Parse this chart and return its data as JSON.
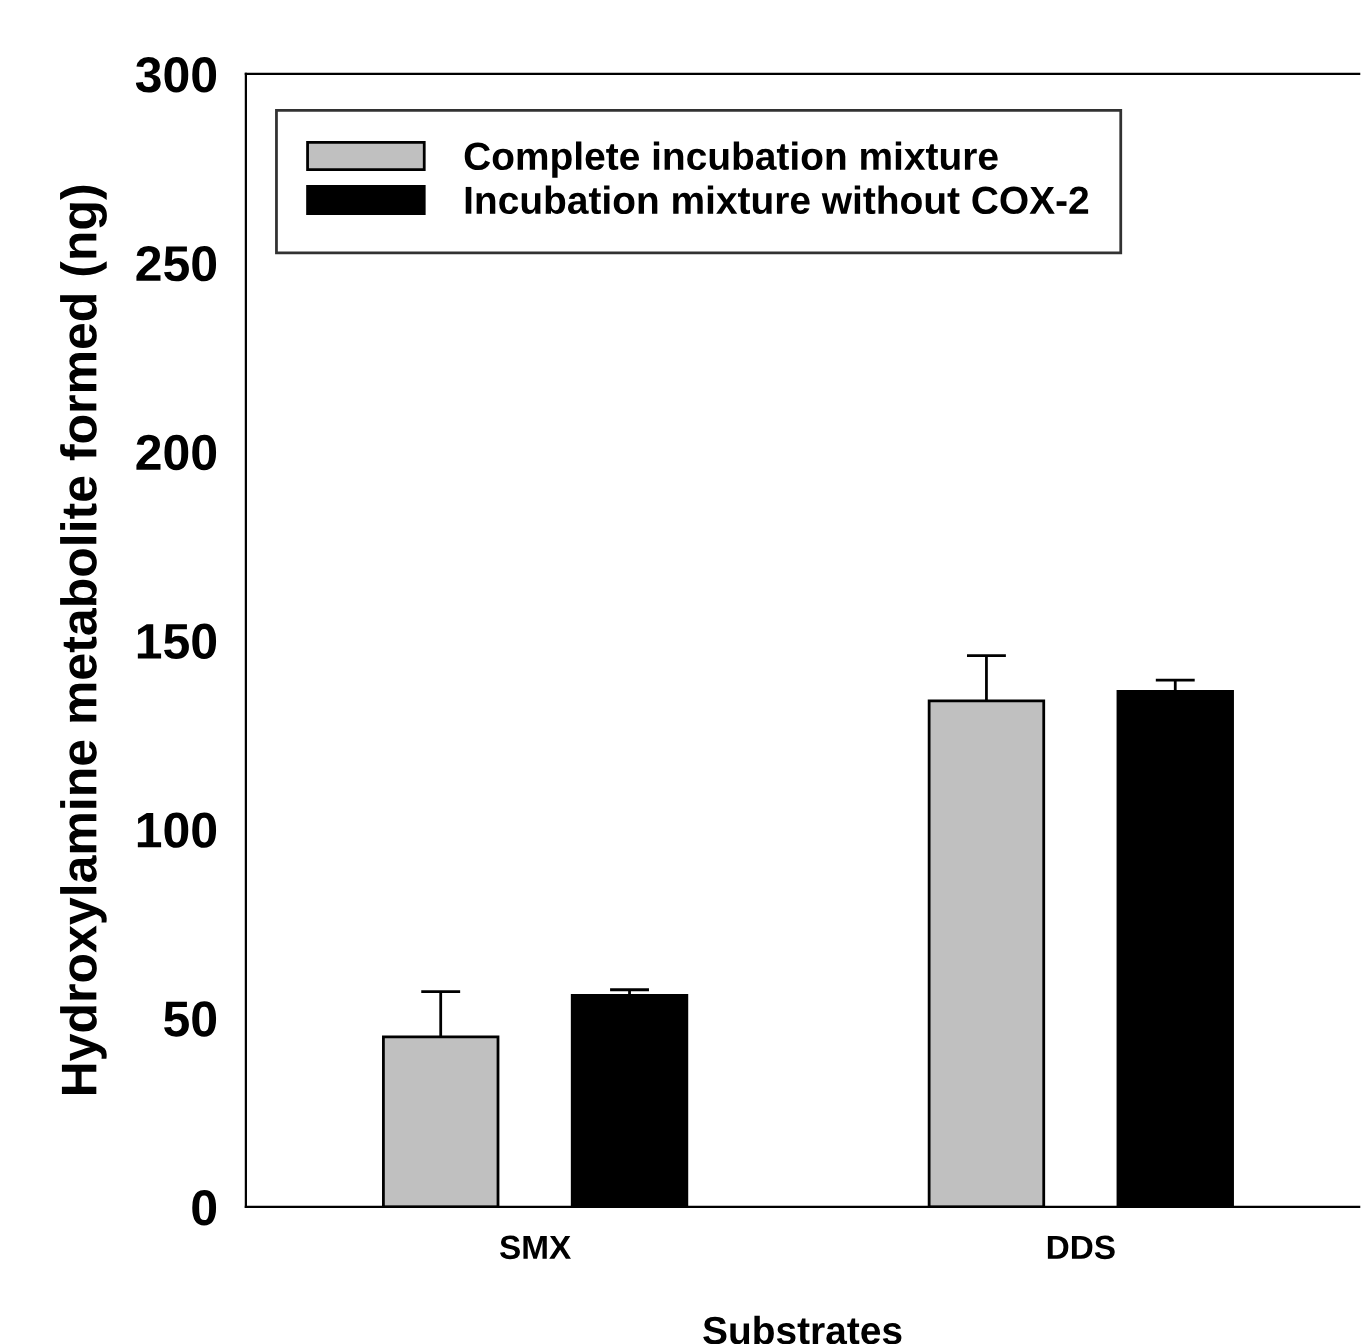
{
  "chart_data": {
    "type": "bar",
    "xlabel": "Substrates",
    "ylabel": "Hydroxylamine metabolite formed (ng)",
    "categories": [
      "SMX",
      "DDS"
    ],
    "series": [
      {
        "name": "Complete incubation mixture",
        "color": "#c0c0c0",
        "values": [
          45,
          134
        ],
        "errors": [
          12,
          12
        ]
      },
      {
        "name": "Incubation mixture without COX-2",
        "color": "#000000",
        "values": [
          56,
          136.5
        ],
        "errors": [
          1.5,
          3
        ]
      }
    ],
    "ylim": [
      0,
      300
    ],
    "yticks": [
      0,
      50,
      100,
      150,
      200,
      250,
      300
    ],
    "grid": false,
    "legend": "top"
  }
}
